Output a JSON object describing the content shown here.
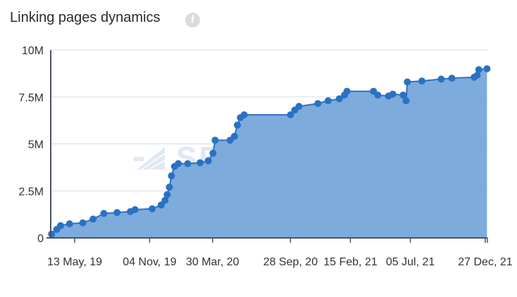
{
  "header": {
    "title": "Linking pages dynamics",
    "info_icon": "info-icon",
    "info_glyph": "i"
  },
  "watermark": {
    "text": "SERPSTAT",
    "icon": "serpstat-logo-icon"
  },
  "colors": {
    "line": "#2a71c4",
    "area": "#76a7da",
    "grid": "#d7dbe3",
    "axis": "#4a5364",
    "watermark": "#dfe8f3"
  },
  "chart_data": {
    "type": "area",
    "title": "Linking pages dynamics",
    "xlabel": "",
    "ylabel": "",
    "x_ticks": [
      "13 May, 19",
      "04 Nov, 19",
      "30 Mar, 20",
      "28 Sep, 20",
      "15 Feb, 21",
      "05 Jul, 21",
      "27 Dec, 21"
    ],
    "y_ticks": [
      "0",
      "2.5M",
      "5M",
      "7.5M",
      "10M"
    ],
    "ylim": [
      0,
      10000000
    ],
    "xlim": [
      "2019-03-18",
      "2022-01-01"
    ],
    "grid": true,
    "series": [
      {
        "values": [
          [
            "2019-03-20",
            200000
          ],
          [
            "2019-04-01",
            450000
          ],
          [
            "2019-04-10",
            650000
          ],
          [
            "2019-05-01",
            750000
          ],
          [
            "2019-06-01",
            800000
          ],
          [
            "2019-06-25",
            1000000
          ],
          [
            "2019-07-20",
            1300000
          ],
          [
            "2019-08-20",
            1350000
          ],
          [
            "2019-09-20",
            1400000
          ],
          [
            "2019-10-01",
            1500000
          ],
          [
            "2019-11-10",
            1550000
          ],
          [
            "2019-12-01",
            1750000
          ],
          [
            "2019-12-10",
            2000000
          ],
          [
            "2019-12-15",
            2300000
          ],
          [
            "2019-12-20",
            2700000
          ],
          [
            "2019-12-25",
            3300000
          ],
          [
            "2020-01-01",
            3800000
          ],
          [
            "2020-01-10",
            3950000
          ],
          [
            "2020-02-01",
            3950000
          ],
          [
            "2020-03-01",
            4000000
          ],
          [
            "2020-03-20",
            4100000
          ],
          [
            "2020-03-31",
            4500000
          ],
          [
            "2020-04-05",
            5200000
          ],
          [
            "2020-05-10",
            5200000
          ],
          [
            "2020-05-20",
            5400000
          ],
          [
            "2020-05-27",
            6000000
          ],
          [
            "2020-06-03",
            6400000
          ],
          [
            "2020-06-12",
            6550000
          ],
          [
            "2020-09-28",
            6550000
          ],
          [
            "2020-10-08",
            6800000
          ],
          [
            "2020-10-18",
            7000000
          ],
          [
            "2020-12-01",
            7150000
          ],
          [
            "2020-12-25",
            7300000
          ],
          [
            "2021-01-20",
            7400000
          ],
          [
            "2021-02-01",
            7600000
          ],
          [
            "2021-02-07",
            7800000
          ],
          [
            "2021-04-10",
            7800000
          ],
          [
            "2021-04-20",
            7600000
          ],
          [
            "2021-05-15",
            7550000
          ],
          [
            "2021-05-25",
            7650000
          ],
          [
            "2021-06-18",
            7600000
          ],
          [
            "2021-06-25",
            7300000
          ],
          [
            "2021-06-28",
            8300000
          ],
          [
            "2021-08-01",
            8350000
          ],
          [
            "2021-09-15",
            8450000
          ],
          [
            "2021-10-10",
            8500000
          ],
          [
            "2021-12-01",
            8550000
          ],
          [
            "2021-12-08",
            8650000
          ],
          [
            "2021-12-12",
            8950000
          ],
          [
            "2021-12-31",
            9000000
          ]
        ]
      }
    ]
  }
}
